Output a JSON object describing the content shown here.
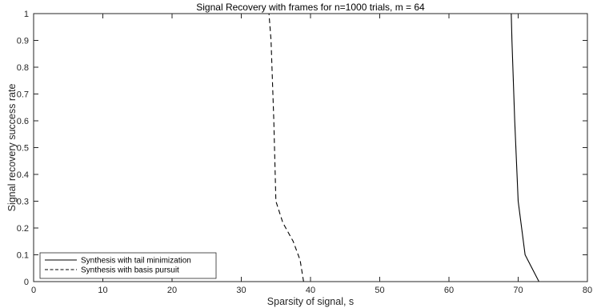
{
  "chart_data": {
    "type": "line",
    "title": "Signal Recovery with frames for n=1000 trials, m = 64",
    "xlabel": "Sparsity of signal, s",
    "ylabel": "Signal recovery success rate",
    "xlim": [
      0,
      80
    ],
    "ylim": [
      0,
      1
    ],
    "xticks": [
      0,
      10,
      20,
      30,
      40,
      50,
      60,
      70,
      80
    ],
    "yticks": [
      0,
      0.1,
      0.2,
      0.3,
      0.4,
      0.5,
      0.6,
      0.7,
      0.8,
      0.9,
      1
    ],
    "xtick_labels": [
      "0",
      "10",
      "20",
      "30",
      "40",
      "50",
      "60",
      "70",
      "80"
    ],
    "ytick_labels": [
      "0",
      "0.1",
      "0.2",
      "0.3",
      "0.4",
      "0.5",
      "0.6",
      "0.7",
      "0.8",
      "0.9",
      "1"
    ],
    "grid": false,
    "legend_position": "bottom-left",
    "series": [
      {
        "name": "Synthesis with tail minimization",
        "style": "solid",
        "color": "#000000",
        "x": [
          0,
          69,
          69.1,
          69.5,
          70,
          71,
          72,
          73,
          80
        ],
        "y": [
          1,
          1,
          0.9,
          0.6,
          0.3,
          0.1,
          0.05,
          0,
          0
        ]
      },
      {
        "name": "Synthesis with basis pursuit",
        "style": "dashed",
        "color": "#000000",
        "x": [
          0,
          34,
          34.3,
          34.7,
          35,
          36,
          37.5,
          38.5,
          39,
          80
        ],
        "y": [
          1,
          1,
          0.9,
          0.6,
          0.3,
          0.22,
          0.15,
          0.08,
          0,
          0
        ]
      }
    ]
  }
}
